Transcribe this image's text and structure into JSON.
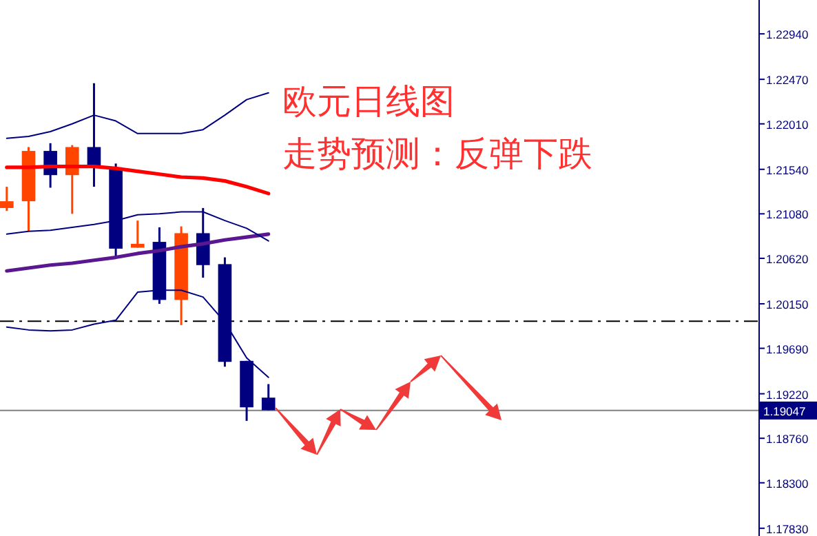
{
  "chart_data": {
    "type": "candlestick",
    "title": "欧元日线图",
    "subtitle": "走势预测：反弹下跌",
    "categories": [
      null,
      null,
      null,
      null,
      null,
      null,
      null,
      null,
      null,
      null,
      null,
      null,
      null,
      null,
      null,
      null,
      null,
      null,
      null,
      null,
      null,
      null,
      null,
      null,
      null,
      null,
      null,
      null,
      null,
      null,
      null,
      null,
      null,
      null,
      null
    ],
    "ohlc": [
      [
        1.2114,
        1.2136,
        1.2111,
        1.2121
      ],
      [
        1.2121,
        1.2177,
        1.209,
        1.2173
      ],
      [
        1.2173,
        1.2181,
        1.2135,
        1.2148
      ],
      [
        1.2148,
        1.2179,
        1.2108,
        1.2177
      ],
      [
        1.2177,
        1.2243,
        1.2136,
        1.2156
      ],
      [
        1.2156,
        1.216,
        1.2063,
        1.2072
      ],
      [
        1.2073,
        1.2101,
        1.2073,
        1.2077
      ],
      [
        1.2079,
        1.2094,
        1.2015,
        1.2019
      ],
      [
        1.2019,
        1.2095,
        1.1993,
        1.2088
      ],
      [
        1.2088,
        1.2114,
        1.2042,
        1.2055
      ],
      [
        1.2056,
        1.2063,
        1.195,
        1.1955
      ],
      [
        1.1956,
        1.1956,
        1.1894,
        1.1908
      ],
      [
        1.1918,
        1.1932,
        1.1905,
        1.1905
      ],
      null,
      null,
      null,
      null,
      null,
      null,
      null,
      null,
      null,
      null,
      null,
      null,
      null,
      null,
      null,
      null,
      null,
      null,
      null,
      null,
      null,
      null
    ],
    "colors": [
      "#ff4500",
      "#ff4500",
      "#000080",
      "#ff4500",
      "#000080",
      "#000080",
      "#ff4500",
      "#000080",
      "#ff4500",
      "#000080",
      "#000080",
      "#000080",
      "#000080",
      null,
      null,
      null,
      null,
      null,
      null,
      null,
      null,
      null,
      null,
      null,
      null,
      null,
      null,
      null,
      null,
      null,
      null,
      null,
      null,
      null,
      null
    ],
    "series": [
      {
        "type": "line",
        "color": "#ff0000",
        "values": [
          1.2156,
          1.2156,
          1.2157,
          1.2157,
          1.2157,
          1.2155,
          1.2152,
          1.2149,
          1.2146,
          1.2145,
          1.2142,
          1.2136,
          1.2129,
          null,
          null,
          null,
          null,
          null,
          null,
          null,
          null,
          null,
          null,
          null,
          null,
          null,
          null,
          null,
          null,
          null,
          null,
          null,
          null,
          null,
          null
        ]
      },
      {
        "type": "line",
        "color": "#5a1890",
        "values": [
          1.2049,
          1.2052,
          1.2055,
          1.2057,
          1.206,
          1.2063,
          1.2067,
          1.207,
          1.2074,
          1.2077,
          1.2081,
          1.2084,
          1.2087,
          null,
          null,
          null,
          null,
          null,
          null,
          null,
          null,
          null,
          null,
          null,
          null,
          null,
          null,
          null,
          null,
          null,
          null,
          null,
          null,
          null,
          null
        ]
      },
      {
        "type": "line",
        "color": "#000080",
        "values": [
          1.2186,
          1.2188,
          1.2193,
          1.2201,
          1.221,
          1.2204,
          1.2191,
          1.2191,
          1.2191,
          1.2195,
          1.221,
          1.2226,
          1.2233,
          null,
          null,
          null,
          null,
          null,
          null,
          null,
          null,
          null,
          null,
          null,
          null,
          null,
          null,
          null,
          null,
          null,
          null,
          null,
          null,
          null,
          null
        ]
      },
      {
        "type": "line",
        "color": "#000080",
        "values": [
          1.2087,
          1.209,
          1.2091,
          1.2094,
          1.2097,
          1.2101,
          1.2107,
          1.2108,
          1.211,
          1.211,
          1.2101,
          1.2093,
          1.208,
          null,
          null,
          null,
          null,
          null,
          null,
          null,
          null,
          null,
          null,
          null,
          null,
          null,
          null,
          null,
          null,
          null,
          null,
          null,
          null,
          null,
          null
        ]
      },
      {
        "type": "line",
        "color": "#000080",
        "values": [
          1.1991,
          1.1988,
          1.1987,
          1.1988,
          1.1994,
          1.1998,
          1.2027,
          1.2029,
          1.2029,
          1.2022,
          1.1996,
          1.1959,
          1.1939,
          null,
          null,
          null,
          null,
          null,
          null,
          null,
          null,
          null,
          null,
          null,
          null,
          null,
          null,
          null,
          null,
          null,
          null,
          null,
          null,
          null,
          null
        ]
      }
    ],
    "ylim": [
      1.1775,
      1.2329
    ],
    "yticks": [
      {
        "value": 1.2294,
        "label": "1.22940"
      },
      {
        "value": 1.2247,
        "label": "1.22470"
      },
      {
        "value": 1.2201,
        "label": "1.22010"
      },
      {
        "value": 1.2154,
        "label": "1.21540"
      },
      {
        "value": 1.2108,
        "label": "1.21080"
      },
      {
        "value": 1.2062,
        "label": "1.20620"
      },
      {
        "value": 1.2015,
        "label": "1.20150"
      },
      {
        "value": 1.1969,
        "label": "1.19690"
      },
      {
        "value": 1.1922,
        "label": "1.19220"
      },
      {
        "value": 1.1876,
        "label": "1.18760"
      },
      {
        "value": 1.183,
        "label": "1.18300"
      },
      {
        "value": 1.1783,
        "label": "1.17830"
      }
    ],
    "ref_lines": [
      {
        "axis": "y",
        "value": 1.1997,
        "color": "#000000",
        "line_style": "dashed"
      },
      {
        "axis": "y",
        "value": 1.19047,
        "label": "1.19047",
        "color": "#808080",
        "line_style": "solid"
      }
    ],
    "tick_labels": "y"
  }
}
